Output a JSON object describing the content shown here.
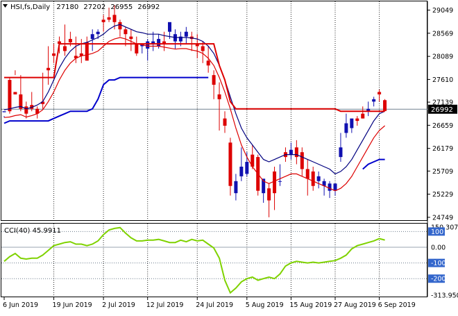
{
  "window": {
    "symbol_line": {
      "arrow": "triangle-down-icon",
      "symbol": "HSI,fs,Daily",
      "open": "27180",
      "high": "27202",
      "low": "26955",
      "close": "26992"
    },
    "current_price_label": "26992",
    "indicator_label": "CCI(40) 45.9911"
  },
  "chart_data": [
    {
      "type": "candlestick",
      "title": "HSI,fs,Daily",
      "ylim": [
        24690,
        29230
      ],
      "ytick_labels": [
        "29049",
        "28569",
        "28089",
        "27610",
        "27139",
        "26659",
        "26179",
        "25709",
        "25229",
        "24749"
      ],
      "xtick_labels": [
        "6 Jun 2019",
        "19 Jun 2019",
        "2 Jul 2019",
        "12 Jul 2019",
        "24 Jul 2019",
        "5 Aug 2019",
        "15 Aug 2019",
        "27 Aug 2019",
        "6 Sep 2019"
      ],
      "xtick_index": [
        0,
        9,
        18,
        26,
        35,
        44,
        52,
        60,
        68
      ],
      "last_price": 26992,
      "candles": [
        [
          26930,
          26850,
          26950,
          26820
        ],
        [
          27600,
          27650,
          26950,
          26900
        ],
        [
          27350,
          27800,
          27300,
          27700
        ],
        [
          27300,
          27700,
          27000,
          26950
        ],
        [
          27050,
          27150,
          26900,
          26800
        ],
        [
          27080,
          27350,
          27000,
          26950
        ],
        [
          27000,
          27050,
          26900,
          26800
        ],
        [
          27150,
          27750,
          27100,
          27000
        ],
        [
          27850,
          28300,
          27800,
          27500
        ],
        [
          28150,
          28350,
          28100,
          27950
        ],
        [
          28400,
          28500,
          28350,
          28150
        ],
        [
          28300,
          28750,
          28200,
          28100
        ],
        [
          28450,
          28600,
          28380,
          28300
        ],
        [
          28100,
          28500,
          28050,
          27950
        ],
        [
          28150,
          28450,
          28100,
          27950
        ],
        [
          28380,
          28500,
          28000,
          28100
        ],
        [
          28450,
          28650,
          28550,
          28200
        ],
        [
          28550,
          28650,
          28600,
          28450
        ],
        [
          28850,
          28950,
          28800,
          28600
        ],
        [
          28900,
          29100,
          28850,
          28800
        ],
        [
          28950,
          29150,
          28800,
          28650
        ],
        [
          28800,
          28850,
          28650,
          28500
        ],
        [
          28650,
          28700,
          28550,
          28300
        ],
        [
          28500,
          28650,
          28450,
          28200
        ],
        [
          28350,
          28500,
          28150,
          28100
        ],
        [
          28300,
          28350,
          28350,
          28150
        ],
        [
          28250,
          28450,
          28400,
          28000
        ],
        [
          28350,
          28600,
          28400,
          28200
        ],
        [
          28300,
          28550,
          28450,
          28250
        ],
        [
          28400,
          28600,
          28350,
          28200
        ],
        [
          28600,
          28750,
          28800,
          28450
        ],
        [
          28400,
          28650,
          28550,
          28250
        ],
        [
          28400,
          28600,
          28500,
          28300
        ],
        [
          28500,
          28700,
          28600,
          28350
        ],
        [
          28500,
          28600,
          28450,
          28200
        ],
        [
          28350,
          28550,
          28300,
          28050
        ],
        [
          28300,
          28400,
          28200,
          27950
        ],
        [
          28000,
          28300,
          27900,
          27750
        ],
        [
          27700,
          27800,
          27500,
          27200
        ],
        [
          27300,
          27550,
          27200,
          26550
        ],
        [
          26800,
          26950,
          26650,
          26500
        ],
        [
          26300,
          26400,
          25400,
          25200
        ],
        [
          25250,
          25650,
          25500,
          25100
        ],
        [
          25600,
          26200,
          25800,
          25500
        ],
        [
          25650,
          26100,
          25900,
          25600
        ],
        [
          26050,
          26250,
          25800,
          25750
        ],
        [
          26000,
          26050,
          25300,
          25200
        ],
        [
          25250,
          25500,
          25550,
          25050
        ],
        [
          25350,
          25450,
          25100,
          24750
        ],
        [
          25700,
          25800,
          25250,
          24900
        ],
        [
          25500,
          25850,
          25500,
          25400
        ],
        [
          26100,
          26200,
          26000,
          25900
        ],
        [
          26050,
          26300,
          26150,
          25950
        ],
        [
          26200,
          26350,
          26000,
          25850
        ],
        [
          26100,
          26200,
          25750,
          25600
        ],
        [
          25750,
          25950,
          25550,
          25200
        ],
        [
          25700,
          25800,
          25400,
          25300
        ],
        [
          25500,
          25700,
          25600,
          25350
        ],
        [
          25400,
          25550,
          25500,
          25200
        ],
        [
          25300,
          25500,
          25450,
          25150
        ],
        [
          25300,
          25400,
          25450,
          25200
        ],
        [
          26000,
          26500,
          26200,
          25900
        ],
        [
          26500,
          26900,
          26700,
          26400
        ],
        [
          26600,
          26750,
          26800,
          26500
        ],
        [
          26800,
          26850,
          26750,
          26650
        ],
        [
          26900,
          27050,
          26800,
          26800
        ],
        [
          26950,
          27150,
          27000,
          26850
        ],
        [
          27150,
          27250,
          27200,
          27050
        ],
        [
          27350,
          27400,
          27300,
          27150
        ],
        [
          27180,
          27202,
          26955,
          26992
        ]
      ],
      "series": [
        {
          "name": "",
          "color": "#000080",
          "values": [
            26980,
            27000,
            27030,
            27050,
            27000,
            27030,
            27080,
            27150,
            27350,
            27600,
            27850,
            28050,
            28200,
            28300,
            28350,
            28380,
            28430,
            28480,
            28550,
            28650,
            28720,
            28750,
            28700,
            28650,
            28600,
            28580,
            28550,
            28550,
            28550,
            28520,
            28500,
            28480,
            28480,
            28480,
            28470,
            28450,
            28400,
            28300,
            28150,
            27900,
            27600,
            27250,
            26900,
            26600,
            26400,
            26250,
            26100,
            25950,
            25900,
            25950,
            26000,
            26050,
            26050,
            26050,
            26000,
            25950,
            25900,
            25850,
            25800,
            25750,
            25650,
            25700,
            25800,
            25950,
            26150,
            26350,
            26550,
            26750,
            26900,
            26950
          ]
        },
        {
          "name": "",
          "color": "#dd0000",
          "values": [
            26820,
            26830,
            26860,
            26880,
            26830,
            26860,
            26900,
            26980,
            27150,
            27350,
            27600,
            27800,
            27950,
            28050,
            28100,
            28120,
            28150,
            28200,
            28300,
            28400,
            28450,
            28480,
            28450,
            28400,
            28350,
            28330,
            28300,
            28300,
            28300,
            28280,
            28260,
            28240,
            28250,
            28250,
            28220,
            28200,
            28150,
            28050,
            27900,
            27650,
            27350,
            27000,
            26600,
            26250,
            26000,
            25800,
            25650,
            25500,
            25450,
            25500,
            25550,
            25600,
            25650,
            25650,
            25600,
            25550,
            25500,
            25450,
            25400,
            25350,
            25300,
            25350,
            25450,
            25600,
            25800,
            26000,
            26200,
            26400,
            26550,
            26650
          ]
        },
        {
          "name": "",
          "color": "#0000cc",
          "values": [
            26700,
            26750,
            26750,
            26750,
            26750,
            26750,
            26750,
            26750,
            26750,
            26800,
            26850,
            26900,
            26950,
            26950,
            26950,
            26950,
            27000,
            27200,
            27500,
            27600,
            27600,
            27650,
            27650,
            27650,
            27650,
            27650,
            27650,
            27650,
            27650,
            27650,
            27650,
            27650,
            27650,
            27650,
            27650,
            27650,
            27650,
            27650,
            null,
            null,
            null,
            null,
            null,
            null,
            null,
            null,
            null,
            null,
            null,
            null,
            null,
            null,
            null,
            null,
            null,
            null,
            null,
            null,
            null,
            null,
            null,
            null,
            null,
            null,
            null,
            25750,
            25850,
            25900,
            25950,
            25950
          ]
        },
        {
          "name": "",
          "color": "#dd0000",
          "values": [
            27650,
            27650,
            27650,
            27650,
            27650,
            27650,
            27650,
            27650,
            27650,
            27650,
            28350,
            28350,
            28350,
            28350,
            28350,
            28350,
            28350,
            28350,
            28350,
            28350,
            28350,
            28350,
            28350,
            28350,
            28350,
            28350,
            28350,
            28350,
            28350,
            28350,
            28350,
            28350,
            28350,
            28350,
            28350,
            28350,
            28350,
            28350,
            28350,
            27900,
            27600,
            27150,
            27000,
            27000,
            27000,
            27000,
            27000,
            27000,
            27000,
            27000,
            27000,
            27000,
            27000,
            27000,
            27000,
            27000,
            27000,
            27000,
            27000,
            27000,
            27000,
            26950,
            26950,
            26950,
            26950,
            26950,
            26950,
            26950,
            26950,
            26950
          ]
        }
      ]
    },
    {
      "type": "line",
      "title": "CCI(40) 45.9911",
      "ylim": [
        -313.95,
        150.3071
      ],
      "ytick_labels": [
        "150.3071",
        "100",
        "0.00",
        "-100",
        "-200",
        "-313.9505"
      ],
      "levels": [
        100,
        0,
        -100,
        -200
      ],
      "series": [
        {
          "name": "CCI(40)",
          "color": "#7fd200",
          "values": [
            -90,
            -60,
            -40,
            -70,
            -75,
            -70,
            -70,
            -50,
            -20,
            10,
            20,
            30,
            35,
            20,
            20,
            10,
            20,
            40,
            80,
            110,
            120,
            125,
            90,
            60,
            40,
            40,
            45,
            45,
            50,
            40,
            30,
            30,
            45,
            35,
            50,
            40,
            45,
            20,
            -5,
            -70,
            -210,
            -290,
            -260,
            -220,
            -200,
            -190,
            -210,
            -200,
            -190,
            -200,
            -170,
            -120,
            -100,
            -90,
            -95,
            -100,
            -95,
            -100,
            -95,
            -90,
            -85,
            -70,
            -50,
            -10,
            10,
            20,
            30,
            40,
            55,
            46
          ]
        }
      ]
    }
  ]
}
